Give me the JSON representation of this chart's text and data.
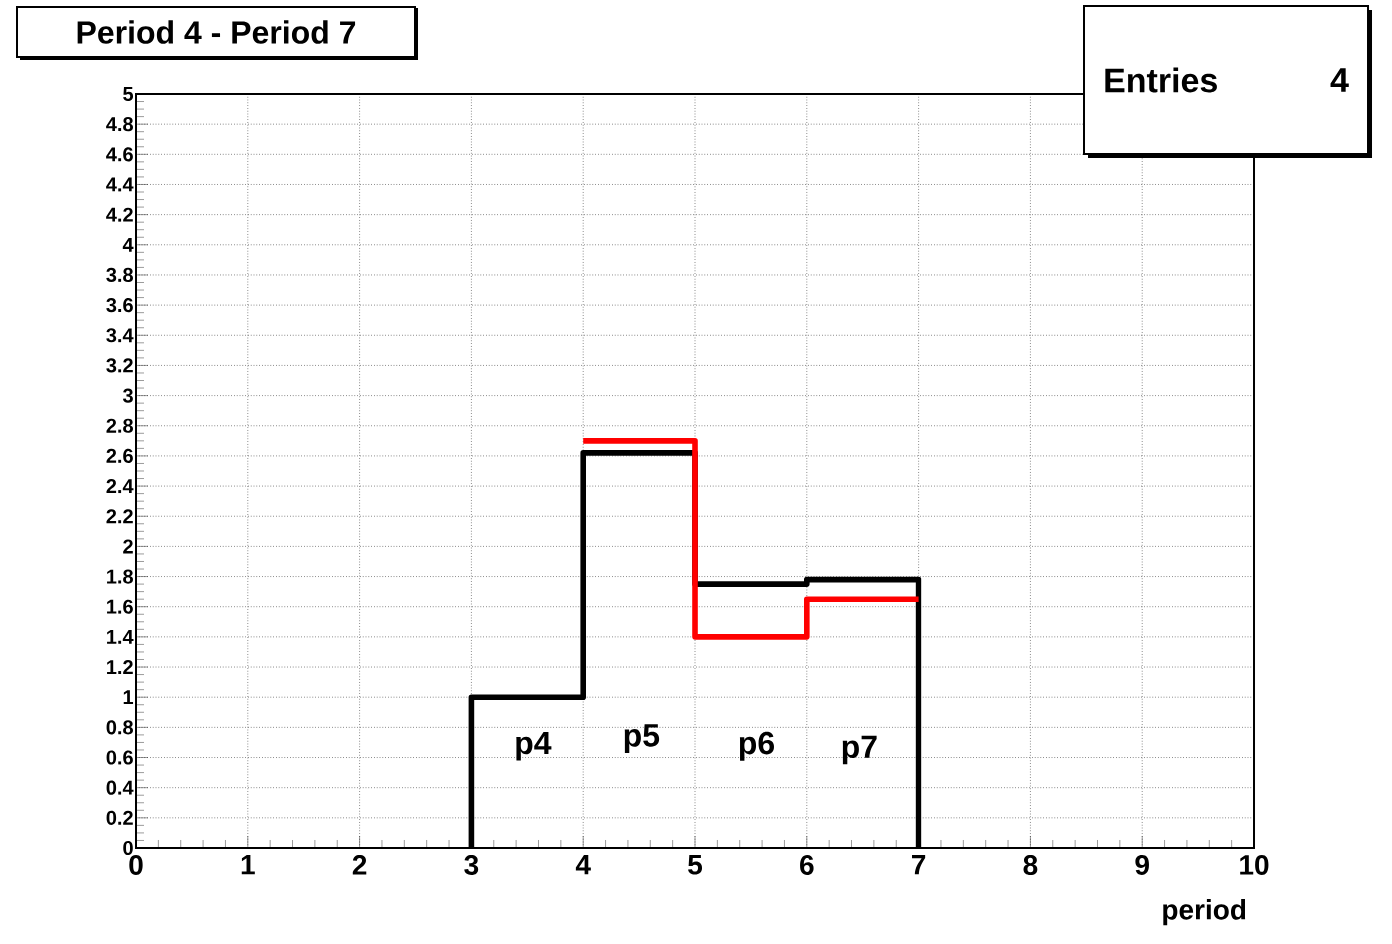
{
  "chart_data": {
    "type": "histogram",
    "title": "Period 4 - Period 7",
    "xlabel": "period",
    "bins": [
      3,
      4,
      5,
      6,
      7
    ],
    "series": [
      {
        "color": "#000000",
        "values": [
          1.0,
          2.62,
          1.75,
          1.78
        ]
      },
      {
        "color": "#ff0000",
        "bins": [
          4,
          5,
          6,
          7
        ],
        "values": [
          2.7,
          1.4,
          1.65
        ]
      }
    ],
    "xlim": [
      0,
      10
    ],
    "xticks": [
      0,
      1,
      2,
      3,
      4,
      5,
      6,
      7,
      8,
      9,
      10
    ],
    "ylim": [
      0,
      5
    ],
    "yticks": [
      0,
      0.2,
      0.4,
      0.6,
      0.8,
      1,
      1.2,
      1.4,
      1.6,
      1.8,
      2,
      2.2,
      2.4,
      2.6,
      2.8,
      3,
      3.2,
      3.4,
      3.6,
      3.8,
      4,
      4.2,
      4.4,
      4.6,
      4.8,
      5
    ],
    "grid": true,
    "annotations": [
      "p4",
      "p5",
      "p6",
      "p7",
      "Entries",
      "4"
    ]
  }
}
